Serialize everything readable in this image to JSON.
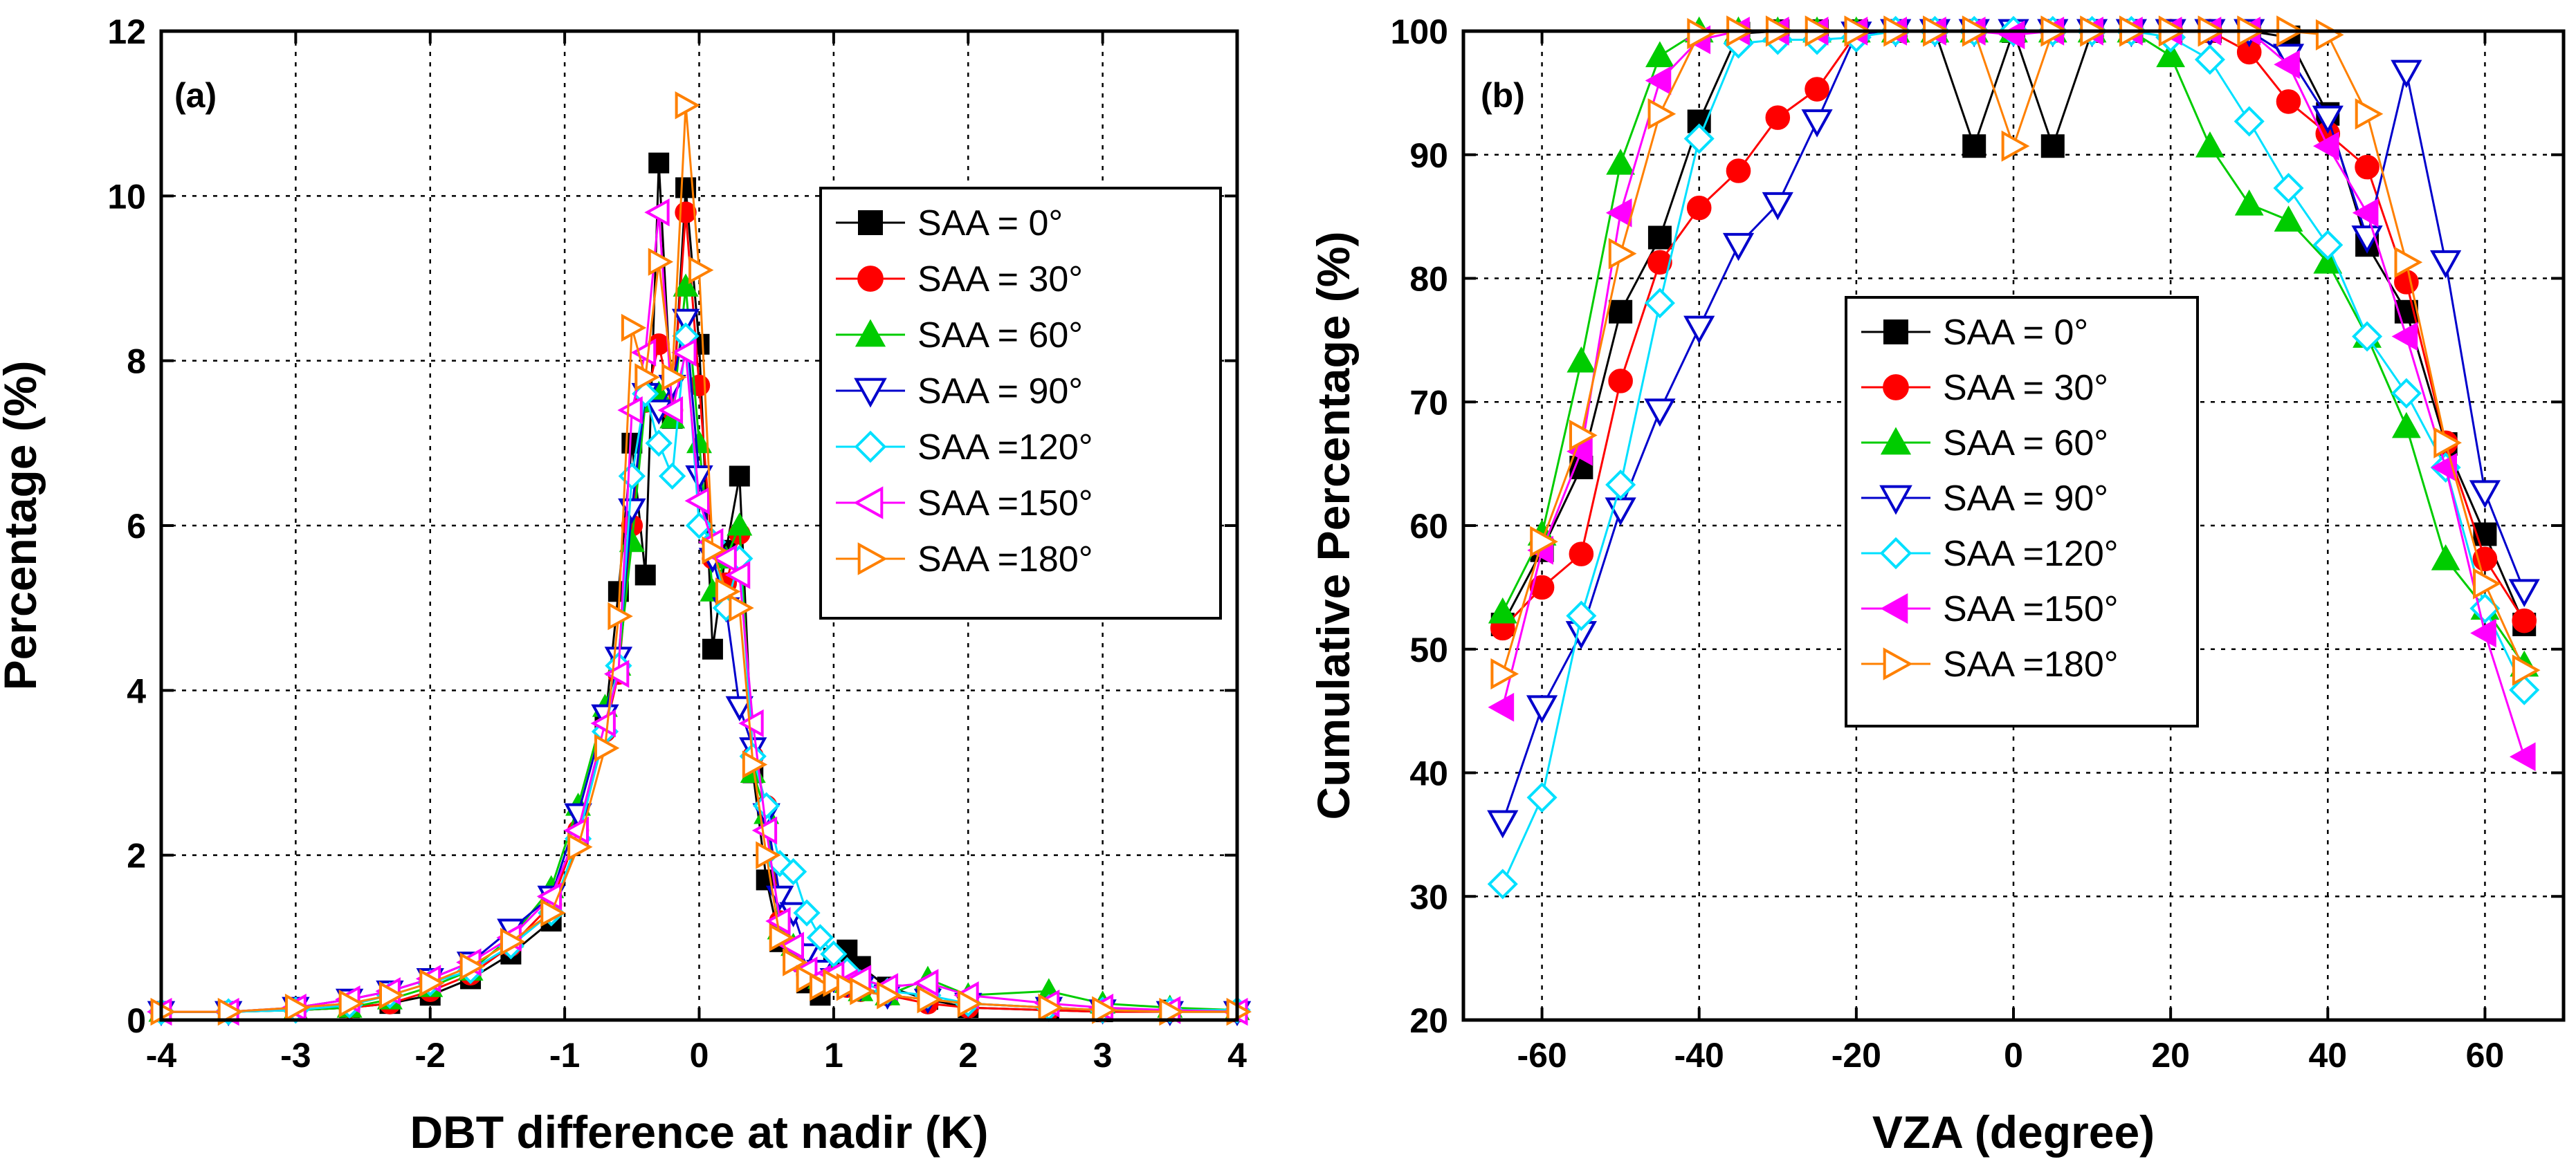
{
  "chart_data": [
    {
      "type": "line",
      "panel_label": "(a)",
      "title": "",
      "xlabel": "DBT difference at nadir (K)",
      "ylabel": "Percentage (%)",
      "xlim": [
        -4,
        4
      ],
      "ylim": [
        0,
        12
      ],
      "xticks": [
        "-4",
        "-3",
        "-2",
        "-1",
        "0",
        "1",
        "2",
        "3",
        "4"
      ],
      "yticks": [
        "0",
        "2",
        "4",
        "6",
        "8",
        "10",
        "12"
      ],
      "grid": true,
      "legend_position": "upper-right",
      "x": [
        -4.0,
        -3.5,
        -3.0,
        -2.6,
        -2.3,
        -2.0,
        -1.7,
        -1.4,
        -1.1,
        -0.9,
        -0.7,
        -0.6,
        -0.5,
        -0.4,
        -0.3,
        -0.2,
        -0.1,
        0.0,
        0.1,
        0.2,
        0.3,
        0.4,
        0.5,
        0.6,
        0.7,
        0.8,
        0.9,
        1.0,
        1.1,
        1.2,
        1.4,
        1.7,
        2.0,
        2.6,
        3.0,
        3.5,
        4.0
      ],
      "series": [
        {
          "name": "SAA =  0°",
          "color": "#000000",
          "marker": "square-filled",
          "values": [
            0.1,
            0.1,
            0.12,
            0.15,
            0.2,
            0.3,
            0.5,
            0.8,
            1.2,
            2.2,
            3.6,
            5.2,
            7.0,
            5.4,
            10.4,
            7.3,
            10.1,
            8.2,
            4.5,
            5.7,
            6.6,
            3.0,
            1.7,
            0.95,
            0.75,
            0.45,
            0.3,
            0.75,
            0.85,
            0.65,
            0.4,
            0.25,
            0.15,
            0.12,
            0.1,
            0.12,
            0.1
          ]
        },
        {
          "name": "SAA = 30°",
          "color": "#ff0000",
          "marker": "circle-filled",
          "values": [
            0.1,
            0.1,
            0.12,
            0.15,
            0.2,
            0.35,
            0.55,
            0.9,
            1.4,
            2.3,
            3.5,
            4.2,
            6.0,
            7.5,
            8.2,
            7.4,
            9.8,
            7.7,
            5.6,
            5.3,
            5.9,
            3.2,
            2.6,
            1.2,
            0.8,
            0.55,
            0.45,
            0.5,
            0.4,
            0.35,
            0.3,
            0.2,
            0.15,
            0.12,
            0.1,
            0.1,
            0.1
          ]
        },
        {
          "name": "SAA = 60°",
          "color": "#00cc00",
          "marker": "triangle-up-filled",
          "values": [
            0.1,
            0.1,
            0.12,
            0.15,
            0.25,
            0.4,
            0.6,
            1.0,
            1.6,
            2.6,
            3.8,
            4.3,
            5.8,
            7.5,
            7.6,
            7.3,
            8.9,
            7.0,
            5.2,
            5.6,
            6.0,
            3.0,
            2.5,
            1.1,
            0.9,
            0.7,
            0.5,
            0.6,
            0.45,
            0.35,
            0.3,
            0.5,
            0.3,
            0.35,
            0.2,
            0.15,
            0.12
          ]
        },
        {
          "name": "SAA = 90°",
          "color": "#0000cc",
          "marker": "triangle-down-open",
          "values": [
            0.1,
            0.1,
            0.15,
            0.25,
            0.35,
            0.5,
            0.7,
            1.1,
            1.5,
            2.5,
            3.7,
            4.4,
            6.2,
            7.6,
            7.4,
            7.7,
            8.5,
            6.6,
            5.6,
            5.0,
            3.8,
            3.3,
            2.5,
            1.5,
            1.3,
            0.8,
            0.6,
            0.5,
            0.45,
            0.4,
            0.3,
            0.25,
            0.2,
            0.15,
            0.12,
            0.1,
            0.1
          ]
        },
        {
          "name": "SAA =120°",
          "color": "#00e0ff",
          "marker": "diamond-open",
          "values": [
            0.1,
            0.1,
            0.12,
            0.18,
            0.3,
            0.45,
            0.6,
            0.9,
            1.3,
            2.2,
            3.5,
            4.3,
            6.6,
            7.6,
            7.0,
            6.6,
            8.3,
            6.0,
            5.8,
            5.0,
            5.6,
            3.2,
            2.6,
            1.9,
            1.8,
            1.3,
            1.0,
            0.8,
            0.6,
            0.45,
            0.35,
            0.3,
            0.2,
            0.15,
            0.12,
            0.12,
            0.12
          ]
        },
        {
          "name": "SAA =150°",
          "color": "#ff00ff",
          "marker": "triangle-left-open",
          "values": [
            0.1,
            0.1,
            0.15,
            0.25,
            0.35,
            0.5,
            0.7,
            1.0,
            1.5,
            2.3,
            3.6,
            4.2,
            7.4,
            8.1,
            9.8,
            7.4,
            8.1,
            6.3,
            5.8,
            5.6,
            5.4,
            3.6,
            2.3,
            1.2,
            0.9,
            0.6,
            0.5,
            0.55,
            0.45,
            0.5,
            0.4,
            0.45,
            0.3,
            0.2,
            0.15,
            0.12,
            0.1
          ]
        },
        {
          "name": "SAA =180°",
          "color": "#ff8000",
          "marker": "triangle-right-open",
          "values": [
            0.1,
            0.1,
            0.15,
            0.2,
            0.3,
            0.45,
            0.65,
            0.95,
            1.3,
            2.1,
            3.3,
            4.9,
            8.4,
            7.8,
            9.2,
            7.8,
            11.1,
            9.1,
            5.7,
            5.2,
            5.0,
            3.1,
            2.0,
            1.0,
            0.7,
            0.5,
            0.4,
            0.45,
            0.4,
            0.35,
            0.3,
            0.25,
            0.2,
            0.15,
            0.12,
            0.1,
            0.1
          ]
        }
      ]
    },
    {
      "type": "line",
      "panel_label": "(b)",
      "title": "",
      "xlabel": "VZA (degree)",
      "ylabel": "Cumulative Percentage (%)",
      "xlim": [
        -70,
        70
      ],
      "ylim": [
        20,
        100
      ],
      "xticks": [
        "-60",
        "-40",
        "-20",
        "0",
        "20",
        "40",
        "60"
      ],
      "yticks": [
        "20",
        "30",
        "40",
        "50",
        "60",
        "70",
        "80",
        "90",
        "100"
      ],
      "grid": true,
      "legend_position": "center-left",
      "x": [
        -65,
        -60,
        -55,
        -50,
        -45,
        -40,
        -35,
        -30,
        -25,
        -20,
        -15,
        -10,
        -5,
        0,
        5,
        10,
        15,
        20,
        25,
        30,
        35,
        40,
        45,
        50,
        55,
        60,
        65
      ],
      "series": [
        {
          "name": "SAA =  0°",
          "color": "#000000",
          "marker": "square-filled",
          "values": [
            52,
            58,
            64.7,
            77.3,
            83.3,
            92.7,
            99.8,
            100,
            100,
            100,
            100,
            100,
            90.7,
            100,
            90.7,
            100,
            100,
            100,
            100,
            100,
            99.5,
            93.3,
            82.7,
            77.3,
            66.6,
            59.3,
            52
          ]
        },
        {
          "name": "SAA = 30°",
          "color": "#ff0000",
          "marker": "circle-filled",
          "values": [
            51.7,
            55,
            57.7,
            71.7,
            81.3,
            85.7,
            88.7,
            93,
            95.3,
            99.8,
            100,
            100,
            100,
            100,
            100,
            100,
            100,
            100,
            100,
            98.3,
            94.3,
            91.7,
            89,
            79.7,
            66.7,
            57.3,
            52.3
          ]
        },
        {
          "name": "SAA = 60°",
          "color": "#00cc00",
          "marker": "triangle-up-filled",
          "values": [
            53,
            59.3,
            73.3,
            89.3,
            98,
            100,
            100,
            100,
            100,
            100,
            100,
            100,
            100,
            100,
            100,
            100,
            100,
            98,
            90.7,
            86,
            84.7,
            81.3,
            75.3,
            68,
            57.3,
            53.3,
            48.7
          ]
        },
        {
          "name": "SAA = 90°",
          "color": "#0000cc",
          "marker": "triangle-down-open",
          "values": [
            36,
            45.3,
            51.3,
            61.3,
            69.3,
            76,
            82.7,
            86,
            92.7,
            99.8,
            100,
            100,
            100,
            100,
            100,
            100,
            100,
            100,
            100,
            100,
            98,
            93,
            83.3,
            96.7,
            81.3,
            62.7,
            54.7
          ]
        },
        {
          "name": "SAA =120°",
          "color": "#00e0ff",
          "marker": "diamond-open",
          "values": [
            31,
            38,
            52.7,
            63.3,
            78,
            91.3,
            99,
            99.3,
            99.3,
            99.5,
            100,
            100,
            100,
            100,
            100,
            100,
            100,
            99.5,
            97.7,
            92.7,
            87.3,
            82.7,
            75.3,
            70.7,
            64.7,
            53.3,
            46.7
          ]
        },
        {
          "name": "SAA =150°",
          "color": "#ff00ff",
          "marker": "triangle-left-filled",
          "values": [
            45.3,
            58,
            66,
            85.3,
            96,
            99.3,
            100,
            100,
            100,
            100,
            100,
            100,
            100,
            99.7,
            100,
            100,
            100,
            100,
            100,
            100,
            97.3,
            90.7,
            85.3,
            75.3,
            64.7,
            51.3,
            41.3
          ]
        },
        {
          "name": "SAA =180°",
          "color": "#ff8000",
          "marker": "triangle-right-open",
          "values": [
            48,
            58.7,
            67.3,
            82,
            93.3,
            99.8,
            100,
            100,
            100,
            100,
            100,
            100,
            100,
            90.7,
            100,
            100,
            100,
            100,
            100,
            100,
            100,
            99.7,
            93.3,
            81.3,
            66.7,
            55.3,
            48.3
          ]
        }
      ]
    }
  ]
}
